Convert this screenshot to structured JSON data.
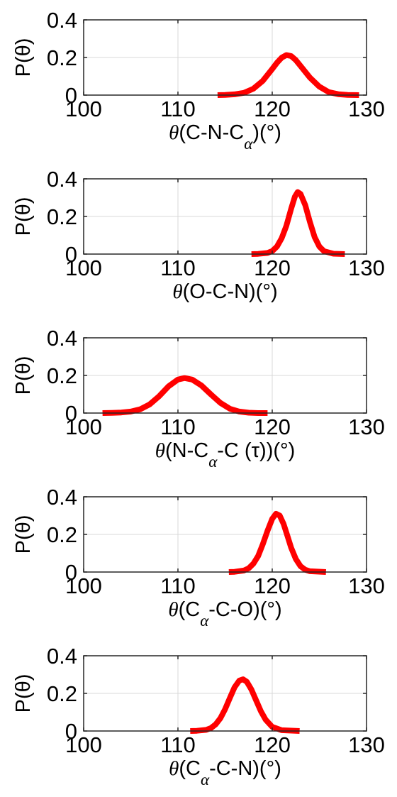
{
  "chart_data": [
    {
      "type": "line",
      "ylabel": "P(θ)",
      "xlabel": {
        "pre": "θ",
        "main": "(C-N-C",
        "sub": "α",
        "post": ")(°)"
      },
      "xlim": [
        100,
        130
      ],
      "ylim": [
        0,
        0.4
      ],
      "xticks": [
        "100",
        "110",
        "120",
        "130"
      ],
      "yticks": [
        "0",
        "0.2",
        "0.4"
      ],
      "grid": true,
      "series": [
        {
          "color": "#ff0000",
          "x": [
            114.2,
            115,
            116,
            117,
            118,
            119,
            120,
            120.5,
            121,
            121.5,
            122,
            122.5,
            123,
            124,
            125,
            126,
            127,
            128,
            129.2
          ],
          "y": [
            0.0,
            0.001,
            0.004,
            0.012,
            0.034,
            0.076,
            0.139,
            0.172,
            0.199,
            0.213,
            0.208,
            0.186,
            0.155,
            0.093,
            0.045,
            0.016,
            0.005,
            0.001,
            0.0
          ]
        }
      ]
    },
    {
      "type": "line",
      "ylabel": "P(θ)",
      "xlabel": {
        "pre": "θ",
        "main": "(O-C-N)(°)",
        "sub": "",
        "post": ""
      },
      "xlim": [
        100,
        130
      ],
      "ylim": [
        0,
        0.4
      ],
      "xticks": [
        "100",
        "110",
        "120",
        "130"
      ],
      "yticks": [
        "0",
        "0.2",
        "0.4"
      ],
      "grid": true,
      "series": [
        {
          "color": "#ff0000",
          "x": [
            117.8,
            118.5,
            119.5,
            120,
            120.5,
            121,
            121.5,
            122,
            122.4,
            122.7,
            123,
            123.5,
            124,
            124.5,
            125,
            125.5,
            126.5,
            127.7
          ],
          "y": [
            0.0,
            0.001,
            0.006,
            0.016,
            0.04,
            0.084,
            0.15,
            0.24,
            0.305,
            0.33,
            0.32,
            0.26,
            0.17,
            0.09,
            0.04,
            0.015,
            0.002,
            0.0
          ]
        }
      ]
    },
    {
      "type": "line",
      "ylabel": "P(θ)",
      "xlabel": {
        "pre": "θ",
        "main": "(N-C",
        "sub": "α",
        "post": "-C (τ))(°)"
      },
      "xlim": [
        100,
        130
      ],
      "ylim": [
        0,
        0.4
      ],
      "xticks": [
        "100",
        "110",
        "120",
        "130"
      ],
      "yticks": [
        "0",
        "0.2",
        "0.4"
      ],
      "grid": true,
      "series": [
        {
          "color": "#ff0000",
          "x": [
            102,
            103,
            104,
            105,
            106,
            107,
            108,
            109,
            110,
            110.7,
            111.5,
            112.5,
            113.5,
            114.5,
            115.5,
            116.5,
            117.5,
            118.5,
            119.5
          ],
          "y": [
            0.0,
            0.001,
            0.003,
            0.008,
            0.02,
            0.046,
            0.089,
            0.142,
            0.178,
            0.186,
            0.178,
            0.146,
            0.099,
            0.054,
            0.023,
            0.008,
            0.002,
            0.0,
            0.0
          ]
        }
      ]
    },
    {
      "type": "line",
      "ylabel": "P(θ)",
      "xlabel": {
        "pre": "θ",
        "main": "(C",
        "sub": "α",
        "post": "-C-O)(°)"
      },
      "xlim": [
        100,
        130
      ],
      "ylim": [
        0,
        0.4
      ],
      "xticks": [
        "100",
        "110",
        "120",
        "130"
      ],
      "yticks": [
        "0",
        "0.2",
        "0.4"
      ],
      "grid": true,
      "series": [
        {
          "color": "#ff0000",
          "x": [
            115.4,
            116,
            117,
            117.5,
            118,
            118.5,
            119,
            119.5,
            120,
            120.4,
            120.8,
            121.2,
            121.6,
            122,
            122.5,
            123,
            123.5,
            124,
            125.7
          ],
          "y": [
            0.0,
            0.001,
            0.008,
            0.02,
            0.044,
            0.085,
            0.148,
            0.22,
            0.283,
            0.31,
            0.3,
            0.256,
            0.194,
            0.13,
            0.069,
            0.031,
            0.012,
            0.004,
            0.0
          ]
        }
      ]
    },
    {
      "type": "line",
      "ylabel": "P(θ)",
      "xlabel": {
        "pre": "θ",
        "main": "(C",
        "sub": "α",
        "post": "-C-N)(°)"
      },
      "xlim": [
        100,
        130
      ],
      "ylim": [
        0,
        0.4
      ],
      "xticks": [
        "100",
        "110",
        "120",
        "130"
      ],
      "yticks": [
        "0",
        "0.2",
        "0.4"
      ],
      "grid": true,
      "series": [
        {
          "color": "#ff0000",
          "x": [
            111.3,
            112,
            113,
            113.5,
            114,
            114.5,
            115,
            115.5,
            116,
            116.5,
            116.9,
            117.3,
            117.8,
            118.3,
            118.8,
            119.3,
            120,
            121,
            122.9
          ],
          "y": [
            0.0,
            0.001,
            0.006,
            0.016,
            0.035,
            0.068,
            0.116,
            0.175,
            0.232,
            0.268,
            0.275,
            0.262,
            0.22,
            0.162,
            0.105,
            0.06,
            0.022,
            0.004,
            0.0
          ]
        }
      ]
    }
  ]
}
